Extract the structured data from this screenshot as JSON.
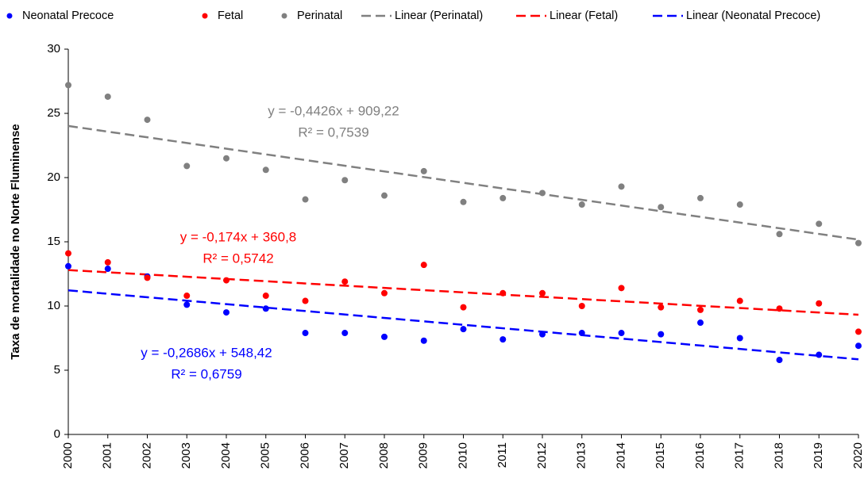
{
  "chart_data": {
    "type": "scatter",
    "y_label": "Taxa de mortalidade no Norte Fluminense",
    "x": [
      2000,
      2001,
      2002,
      2003,
      2004,
      2005,
      2006,
      2007,
      2008,
      2009,
      2010,
      2011,
      2012,
      2013,
      2014,
      2015,
      2016,
      2017,
      2018,
      2019,
      2020
    ],
    "series": [
      {
        "name": "Neonatal Precoce",
        "color": "#0000ff",
        "values": [
          13.1,
          12.9,
          12.3,
          10.1,
          9.5,
          9.8,
          7.9,
          7.9,
          7.6,
          7.3,
          8.2,
          7.4,
          7.8,
          7.9,
          7.9,
          7.8,
          8.7,
          7.5,
          5.8,
          6.2,
          6.9
        ]
      },
      {
        "name": "Fetal",
        "color": "#ff0000",
        "values": [
          14.1,
          13.4,
          12.2,
          10.8,
          12.0,
          10.8,
          10.4,
          11.9,
          11.0,
          13.2,
          9.9,
          11.0,
          11.0,
          10.0,
          11.4,
          9.9,
          9.7,
          10.4,
          9.8,
          10.2,
          8.0
        ]
      },
      {
        "name": "Perinatal",
        "color": "#808080",
        "values": [
          27.2,
          26.3,
          24.5,
          20.9,
          21.5,
          20.6,
          18.3,
          19.8,
          18.6,
          20.5,
          18.1,
          18.4,
          18.8,
          17.9,
          19.3,
          17.7,
          18.4,
          17.9,
          15.6,
          16.4,
          14.9
        ]
      }
    ],
    "trendlines": [
      {
        "name": "Linear (Perinatal)",
        "color": "#808080",
        "x": [
          2000,
          2020
        ],
        "values": [
          24.02,
          15.17
        ],
        "equation": "y = -0,4426x + 909,22",
        "r2": "R² = 0,7539"
      },
      {
        "name": "Linear (Fetal)",
        "color": "#ff0000",
        "x": [
          2000,
          2020
        ],
        "values": [
          12.8,
          9.32
        ],
        "equation": "y = -0,174x + 360,8",
        "r2": "R² = 0,5742"
      },
      {
        "name": "Linear (Neonatal Precoce)",
        "color": "#0000ff",
        "x": [
          2000,
          2020
        ],
        "values": [
          11.22,
          5.85
        ],
        "equation": "y = -0,2686x + 548,42",
        "r2": "R² = 0,6759"
      }
    ],
    "xlim": [
      2000,
      2020
    ],
    "xticks": [
      2000,
      2001,
      2002,
      2003,
      2004,
      2005,
      2006,
      2007,
      2008,
      2009,
      2010,
      2011,
      2012,
      2013,
      2014,
      2015,
      2016,
      2017,
      2018,
      2019,
      2020
    ],
    "ylim": [
      0,
      30
    ],
    "yticks": [
      0,
      5,
      10,
      15,
      20,
      25,
      30
    ],
    "grid": false,
    "legend": "top"
  }
}
